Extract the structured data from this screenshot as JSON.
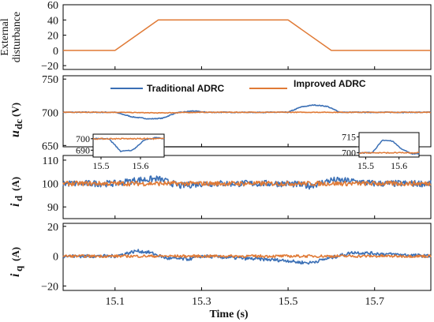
{
  "chart_data": {
    "type": "line",
    "xlabel": "Time (s)",
    "xlim": [
      14.98,
      15.83
    ],
    "x_ticks": [
      "15.1",
      "15.3",
      "15.5",
      "15.7"
    ],
    "legend_entries": [
      "Traditional ADRC",
      "Improved ADRC"
    ],
    "colors": {
      "traditional": "#3a6fb5",
      "improved": "#e07a36"
    },
    "panels": [
      {
        "id": "disturbance",
        "ylabel_lines": [
          "External",
          "disturbance"
        ],
        "ylim": [
          -25,
          60
        ],
        "y_ticks": [
          "60",
          "40",
          "20",
          "0",
          "−20"
        ],
        "series": [
          {
            "name": "",
            "color": "#e07a36",
            "x": [
              14.98,
              15.1,
              15.2,
              15.5,
              15.6,
              15.83
            ],
            "y": [
              0,
              0,
              40,
              40,
              0,
              0
            ]
          }
        ]
      },
      {
        "id": "udc",
        "ylabel_main": "u",
        "ylabel_sub": "dc",
        "ylabel_unit": "(V)",
        "ylim": [
          648,
          755
        ],
        "y_ticks": [
          "750",
          "700",
          "650"
        ],
        "series": [
          {
            "name": "Traditional ADRC",
            "color": "#3a6fb5",
            "x": [
              14.98,
              15.1,
              15.14,
              15.18,
              15.21,
              15.24,
              15.28,
              15.31,
              15.5,
              15.53,
              15.56,
              15.59,
              15.62,
              15.66,
              15.83
            ],
            "y": [
              700,
              700,
              693,
              690,
              691,
              699,
              702,
              700,
              700,
              708,
              711,
              709,
              700,
              700,
              700
            ]
          },
          {
            "name": "Improved ADRC",
            "color": "#e07a36",
            "x": [
              14.98,
              15.1,
              15.2,
              15.3,
              15.5,
              15.6,
              15.83
            ],
            "y": [
              700,
              700,
              699,
              700,
              700,
              700,
              700
            ]
          }
        ],
        "insets": [
          {
            "xlim": [
              15.48,
              15.66
            ],
            "x_ticks": [
              "15.5",
              "15.6"
            ],
            "y_ticks": [
              "700",
              "690"
            ],
            "ylim": [
              684,
              704
            ]
          },
          {
            "xlim": [
              15.48,
              15.66
            ],
            "x_ticks": [
              "15.5",
              "15.6"
            ],
            "y_ticks": [
              "715",
              "700"
            ],
            "ylim": [
              696,
              719
            ]
          }
        ]
      },
      {
        "id": "id",
        "ylabel_main": "i",
        "ylabel_sub": "d",
        "ylabel_unit": "(A)",
        "ylim": [
          85,
          112
        ],
        "y_ticks": [
          "110",
          "100",
          "90"
        ],
        "series": [
          {
            "name": "Traditional ADRC",
            "color": "#3a6fb5",
            "x": [
              14.98,
              15.1,
              15.15,
              15.2,
              15.25,
              15.3,
              15.5,
              15.55,
              15.6,
              15.65,
              15.7,
              15.83
            ],
            "y": [
              100,
              100,
              101.5,
              102,
              99,
              100,
              100,
              99,
              101.5,
              101,
              100,
              100
            ]
          },
          {
            "name": "Improved ADRC",
            "color": "#e07a36",
            "x": [
              14.98,
              15.83
            ],
            "y": [
              100,
              100
            ]
          }
        ]
      },
      {
        "id": "iq",
        "ylabel_main": "i",
        "ylabel_sub": "q",
        "ylabel_unit": "(A)",
        "ylim": [
          -23,
          22
        ],
        "y_ticks": [
          "20",
          "0",
          "−20"
        ],
        "series": [
          {
            "name": "Traditional ADRC",
            "color": "#3a6fb5",
            "x": [
              14.98,
              15.1,
              15.15,
              15.18,
              15.22,
              15.27,
              15.3,
              15.5,
              15.52,
              15.55,
              15.6,
              15.65,
              15.83
            ],
            "y": [
              0,
              0,
              3.5,
              2.5,
              -1.5,
              -2,
              0,
              -3,
              -4,
              -4.5,
              -1,
              2.5,
              0
            ]
          },
          {
            "name": "Improved ADRC",
            "color": "#e07a36",
            "x": [
              14.98,
              15.83
            ],
            "y": [
              0,
              0
            ]
          }
        ]
      }
    ]
  }
}
